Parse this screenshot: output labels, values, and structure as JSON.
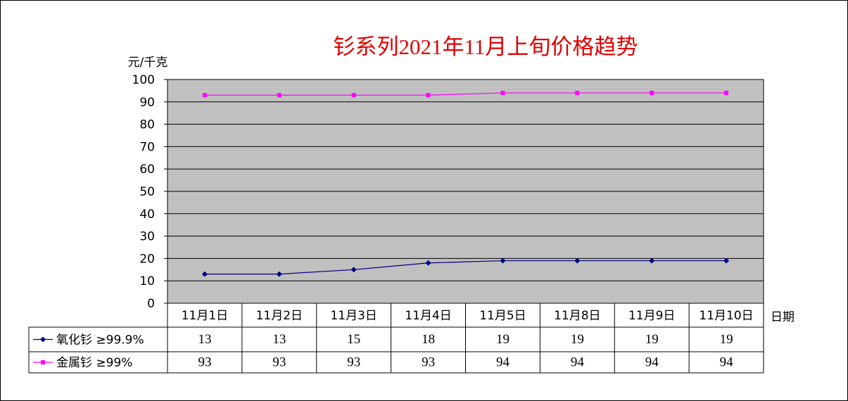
{
  "chart_data": {
    "type": "line",
    "title": "钐系列2021年11月上旬价格趋势",
    "y_label": "元/千克",
    "x_label": "日期",
    "categories": [
      "11月1日",
      "11月2日",
      "11月3日",
      "11月4日",
      "11月5日",
      "11月8日",
      "11月9日",
      "11月10日"
    ],
    "series": [
      {
        "name": "氧化钐 ≥99.9%",
        "color": "#000080",
        "marker": "diamond",
        "values": [
          13,
          13,
          15,
          18,
          19,
          19,
          19,
          19
        ]
      },
      {
        "name": "金属钐 ≥99%",
        "color": "#ff00ff",
        "marker": "square",
        "values": [
          93,
          93,
          93,
          93,
          94,
          94,
          94,
          94
        ]
      }
    ],
    "ylim": [
      0,
      100
    ],
    "yticks": [
      0,
      10,
      20,
      30,
      40,
      50,
      60,
      70,
      80,
      90,
      100
    ],
    "grid": true
  }
}
